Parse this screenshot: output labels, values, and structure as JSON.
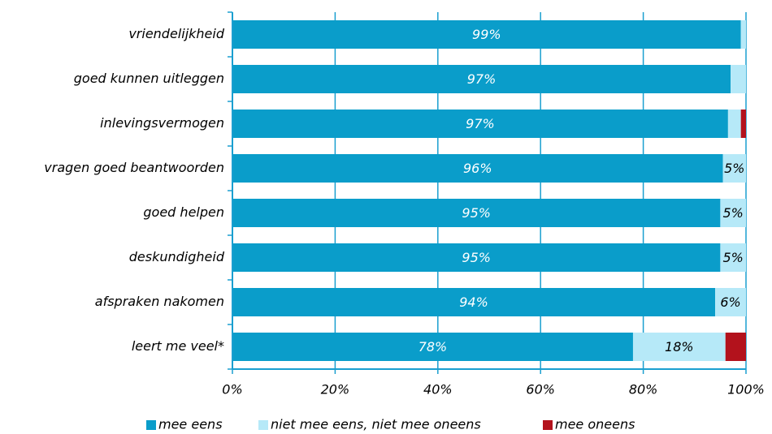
{
  "chart_data": {
    "type": "stacked-bar-horizontal",
    "categories": [
      "vriendelijkheid",
      "goed kunnen uitleggen",
      "inlevingsvermogen",
      "vragen goed beantwoorden",
      "goed helpen",
      "deskundigheid",
      "afspraken nakomen",
      "leert me veel*"
    ],
    "series": [
      {
        "name": "mee eens",
        "color": "#0a9dca",
        "values": [
          99,
          97,
          96.5,
          95.5,
          95,
          95,
          94,
          78
        ],
        "value_labels": [
          "99%",
          "97%",
          "97%",
          "96%",
          "95%",
          "95%",
          "94%",
          "78%"
        ]
      },
      {
        "name": "niet mee eens, niet mee oneens",
        "color": "#b6e9f8",
        "values": [
          1,
          3,
          2.5,
          4.5,
          5,
          5,
          6,
          18
        ],
        "value_labels": [
          null,
          null,
          null,
          "5%",
          "5%",
          "5%",
          "6%",
          "18%"
        ]
      },
      {
        "name": "mee oneens",
        "color": "#b3121c",
        "values": [
          0,
          0,
          1,
          0,
          0,
          0,
          0,
          4
        ],
        "value_labels": [
          null,
          null,
          null,
          null,
          null,
          null,
          null,
          null
        ]
      }
    ],
    "xlim": [
      0,
      100
    ],
    "xticks": [
      {
        "value": 0,
        "label": "0%"
      },
      {
        "value": 20,
        "label": "20%"
      },
      {
        "value": 40,
        "label": "40%"
      },
      {
        "value": 60,
        "label": "60%"
      },
      {
        "value": 80,
        "label": "80%"
      },
      {
        "value": 100,
        "label": "100%"
      }
    ],
    "grid": true,
    "legend": "bottom"
  }
}
